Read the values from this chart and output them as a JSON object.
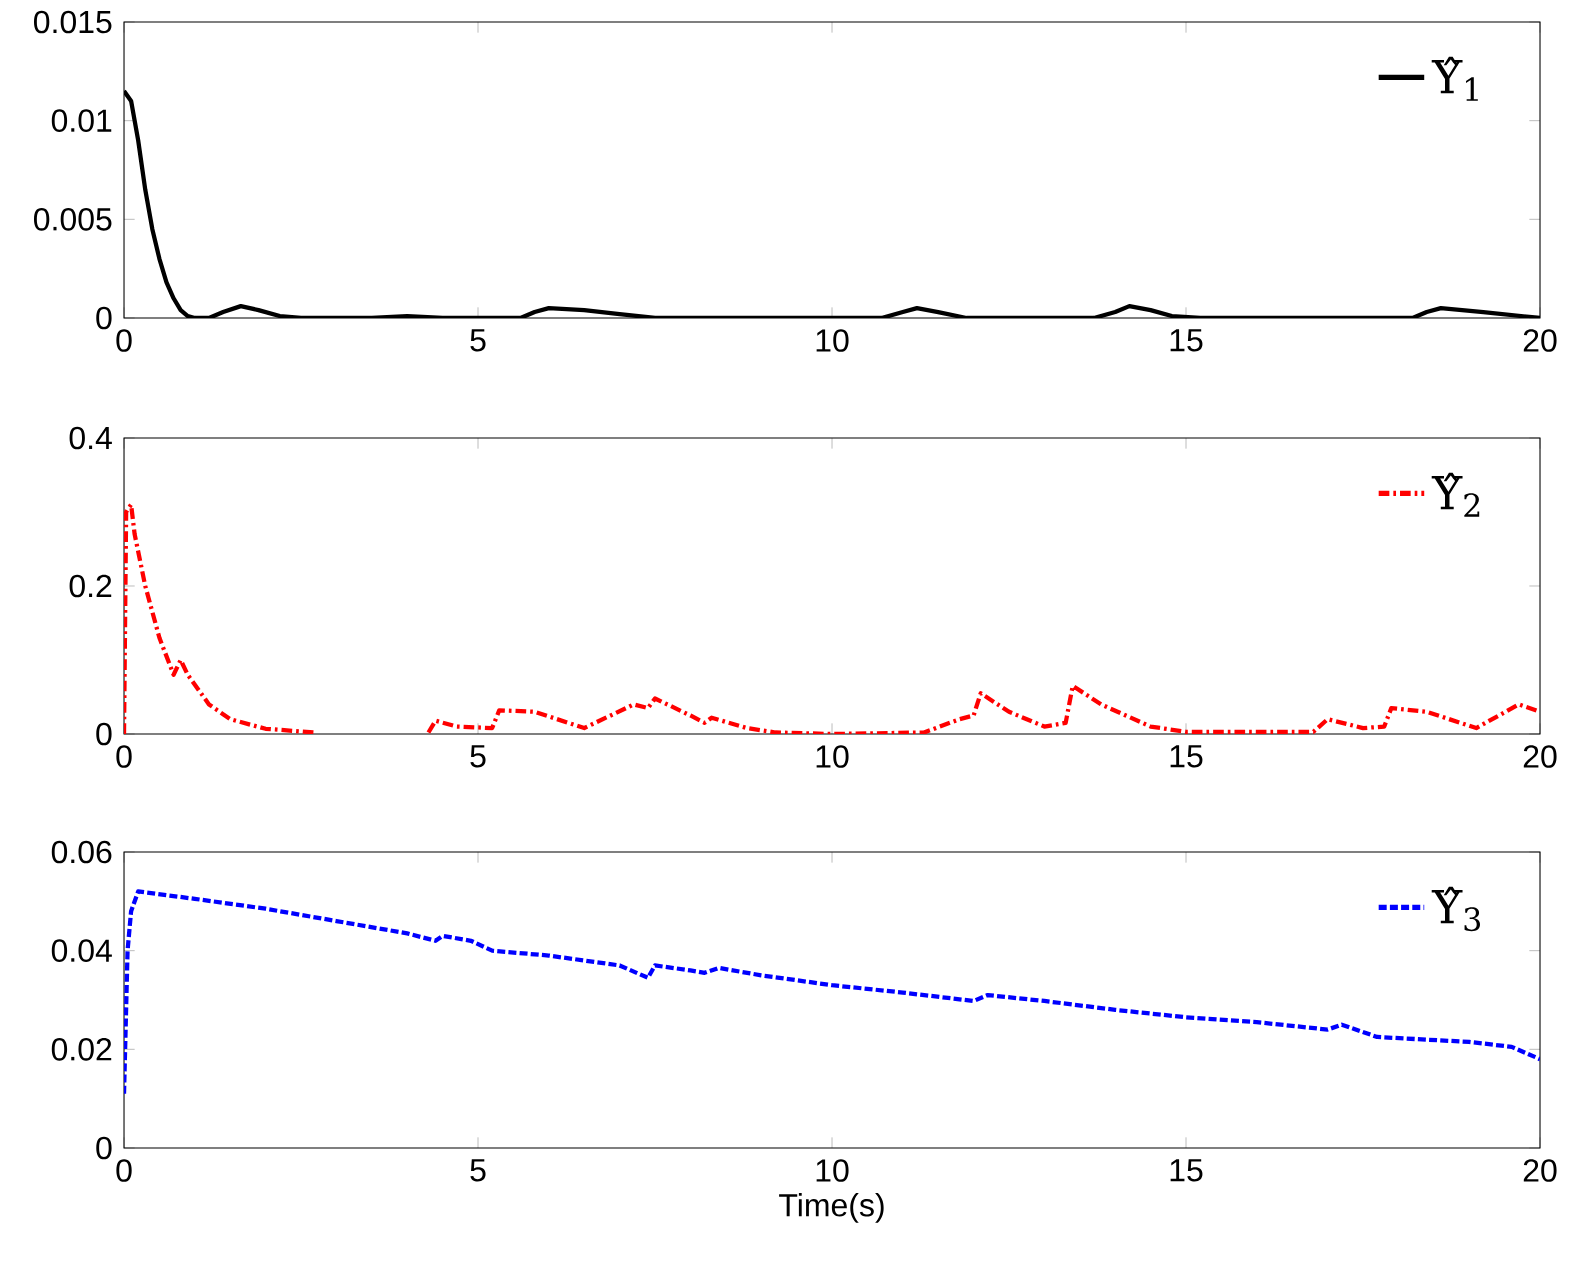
{
  "chart_data": [
    {
      "type": "line",
      "legend": "top right",
      "grid": false,
      "xlim": [
        0,
        20
      ],
      "xticks": [
        0,
        5,
        10,
        15,
        20
      ],
      "ylim": [
        0,
        0.015
      ],
      "yticks": [
        0,
        0.005,
        0.01,
        0.015
      ],
      "series": [
        {
          "name": "Υ̂$_{1}$",
          "color": "#000000",
          "line_style": "solid",
          "x": [
            0,
            0.1,
            0.2,
            0.3,
            0.4,
            0.5,
            0.6,
            0.7,
            0.8,
            0.9,
            1.0,
            1.2,
            1.4,
            1.65,
            1.9,
            2.2,
            2.5,
            3.5,
            4,
            4.5,
            5.6,
            5.8,
            6.0,
            6.5,
            7,
            7.5,
            9,
            10.7,
            11.0,
            11.2,
            11.5,
            11.9,
            13.7,
            14.0,
            14.2,
            14.5,
            14.8,
            15.2,
            18.2,
            18.4,
            18.6,
            19.2,
            20
          ],
          "values": [
            0.0115,
            0.011,
            0.009,
            0.0065,
            0.0045,
            0.003,
            0.0018,
            0.001,
            0.0004,
            0.0001,
            0,
            0,
            0.0003,
            0.0006,
            0.0004,
            0.0001,
            0,
            0,
            0.0001,
            0,
            0,
            0.0003,
            0.0005,
            0.0004,
            0.0002,
            0,
            0,
            0,
            0.0003,
            0.0005,
            0.0003,
            0,
            0,
            0.0003,
            0.0006,
            0.0004,
            0.0001,
            0,
            0,
            0.0003,
            0.0005,
            0.0003,
            0
          ]
        }
      ]
    },
    {
      "type": "line",
      "legend": "top right",
      "grid": false,
      "xlim": [
        0,
        20
      ],
      "xticks": [
        0,
        5,
        10,
        15,
        20
      ],
      "ylim": [
        0,
        0.4
      ],
      "yticks": [
        0,
        0.2,
        0.4
      ],
      "series": [
        {
          "name": "Υ̂$_{2}$",
          "color": "#ff0000",
          "line_style": "dashdot",
          "x": [
            0,
            0.03,
            0.1,
            0.15,
            0.3,
            0.5,
            0.7,
            0.8,
            0.9,
            1.2,
            1.5,
            2.0,
            2.7,
            3.5,
            4.3,
            4.4,
            4.7,
            5.2,
            5.3,
            5.8,
            6.5,
            7.2,
            7.4,
            7.5,
            8.0,
            8.2,
            8.3,
            8.8,
            9.2,
            10,
            11.3,
            11.8,
            12.0,
            12.1,
            12.5,
            13.0,
            13.3,
            13.4,
            13.8,
            14.5,
            15,
            16.8,
            17.0,
            17.5,
            17.8,
            17.9,
            18.4,
            19.1,
            19.7,
            20
          ],
          "values": [
            0,
            0.3,
            0.31,
            0.27,
            0.2,
            0.13,
            0.08,
            0.1,
            0.08,
            0.04,
            0.02,
            0.007,
            0.002,
            null,
            0.002,
            0.018,
            0.01,
            0.008,
            0.032,
            0.03,
            0.008,
            0.04,
            0.035,
            0.048,
            0.025,
            0.015,
            0.022,
            0.008,
            0.002,
            0,
            0.002,
            0.02,
            0.025,
            0.055,
            0.03,
            0.01,
            0.015,
            0.065,
            0.04,
            0.01,
            0.003,
            0.003,
            0.02,
            0.008,
            0.01,
            0.035,
            0.03,
            0.008,
            0.04,
            0.03
          ]
        }
      ]
    },
    {
      "type": "line",
      "legend": "top right",
      "grid": false,
      "xlabel": "Time(s)",
      "xlim": [
        0,
        20
      ],
      "xticks": [
        0,
        5,
        10,
        15,
        20
      ],
      "ylim": [
        0,
        0.06
      ],
      "yticks": [
        0,
        0.02,
        0.04,
        0.06
      ],
      "series": [
        {
          "name": "Υ̂$_{3}$",
          "color": "#0000ff",
          "line_style": "dashed",
          "x": [
            0,
            0.05,
            0.1,
            0.2,
            1,
            2,
            3,
            4,
            4.4,
            4.5,
            4.9,
            5.2,
            6,
            7,
            7.4,
            7.5,
            8.0,
            8.2,
            8.4,
            9,
            10,
            11,
            12,
            12.2,
            13,
            14,
            15,
            16,
            17,
            17.2,
            17.7,
            19,
            19.6,
            20
          ],
          "values": [
            0.011,
            0.04,
            0.048,
            0.052,
            0.0505,
            0.0485,
            0.046,
            0.0435,
            0.042,
            0.043,
            0.042,
            0.04,
            0.039,
            0.037,
            0.0345,
            0.037,
            0.036,
            0.0355,
            0.0365,
            0.035,
            0.033,
            0.0315,
            0.0298,
            0.031,
            0.0298,
            0.028,
            0.0265,
            0.0255,
            0.024,
            0.025,
            0.0225,
            0.0215,
            0.0205,
            0.018
          ]
        }
      ]
    }
  ]
}
